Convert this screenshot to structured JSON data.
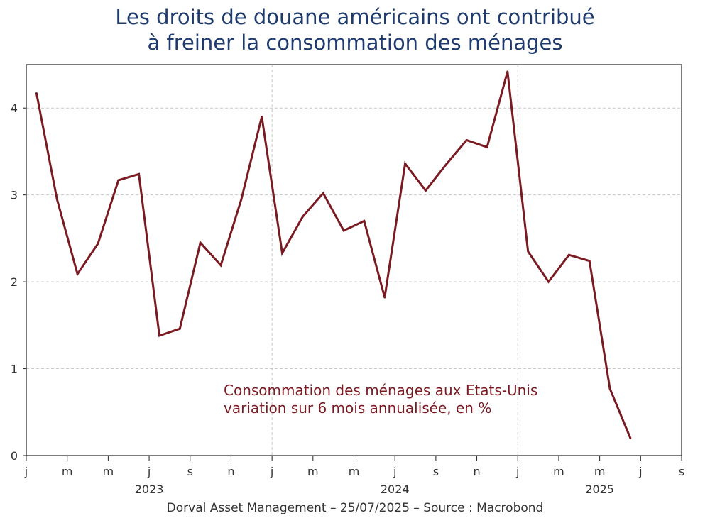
{
  "title_lines": [
    "Les droits de douane américains ont contribué",
    "à freiner la consommation des ménages"
  ],
  "footer": "Dorval Asset Management – 25/07/2025 –   Source : Macrobond",
  "colors": {
    "title": "#1f3b6e",
    "series": "#7a1a22",
    "grid": "#c8c8c8",
    "axis": "#222222"
  },
  "chart_data": {
    "type": "line",
    "title": "Les droits de douane américains ont contribué à freiner la consommation des ménages",
    "xlabel": "",
    "ylabel": "",
    "ylim": [
      0,
      4.5
    ],
    "xlim_months": [
      0,
      32
    ],
    "yticks": [
      0,
      1,
      2,
      3,
      4
    ],
    "ytick_labels": [
      "0",
      "1",
      "2",
      "3",
      "4"
    ],
    "x_ticks": [
      {
        "month": 0,
        "label": "j"
      },
      {
        "month": 2,
        "label": "m"
      },
      {
        "month": 4,
        "label": "m"
      },
      {
        "month": 6,
        "label": "j"
      },
      {
        "month": 8,
        "label": "s"
      },
      {
        "month": 10,
        "label": "n"
      },
      {
        "month": 12,
        "label": "j"
      },
      {
        "month": 14,
        "label": "m"
      },
      {
        "month": 16,
        "label": "m"
      },
      {
        "month": 18,
        "label": "j"
      },
      {
        "month": 20,
        "label": "s"
      },
      {
        "month": 22,
        "label": "n"
      },
      {
        "month": 24,
        "label": "j"
      },
      {
        "month": 26,
        "label": "m"
      },
      {
        "month": 28,
        "label": "m"
      },
      {
        "month": 30,
        "label": "j"
      },
      {
        "month": 32,
        "label": "s"
      }
    ],
    "year_labels": [
      {
        "month": 6,
        "label": "2023"
      },
      {
        "month": 18,
        "label": "2024"
      },
      {
        "month": 28,
        "label": "2025"
      }
    ],
    "vgrid_months": [
      12,
      24
    ],
    "annotation": [
      "Consommation des ménages aux Etats-Unis",
      "variation sur 6 mois annualisée, en %"
    ],
    "series": [
      {
        "name": "Consommation des ménages aux Etats-Unis - variation sur 6 mois annualisée, en %",
        "x": [
          0.5,
          1.5,
          2.5,
          3.5,
          4.5,
          5.5,
          6.5,
          7.5,
          8.5,
          9.5,
          10.5,
          11.5,
          12.5,
          13.5,
          14.5,
          15.5,
          16.5,
          17.5,
          18.5,
          19.5,
          20.5,
          21.5,
          22.5,
          23.5,
          24.5,
          25.5,
          26.5,
          27.5,
          28.5,
          29.5
        ],
        "values": [
          4.17,
          2.95,
          2.09,
          2.44,
          3.17,
          3.24,
          1.38,
          1.46,
          2.45,
          2.19,
          2.95,
          3.9,
          2.33,
          2.75,
          3.02,
          2.59,
          2.7,
          1.82,
          3.36,
          3.05,
          3.35,
          3.63,
          3.55,
          4.42,
          2.35,
          2.0,
          2.31,
          2.24,
          0.77,
          0.2
        ]
      }
    ]
  }
}
